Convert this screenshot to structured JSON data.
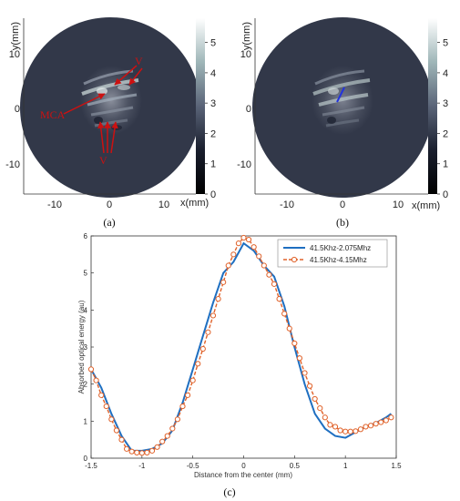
{
  "chart_data": [
    {
      "panel": "(a)",
      "type": "heatmap",
      "xlabel": "x(mm)",
      "ylabel": "y(mm)",
      "xticks": [
        "-10",
        "0",
        "10"
      ],
      "yticks": [
        "10",
        "0",
        "-10"
      ],
      "xlim": [
        -16,
        16
      ],
      "ylim": [
        -15,
        15
      ],
      "colorbar_ticks": [
        "5",
        "4",
        "3",
        "2",
        "1",
        "0"
      ],
      "colorbar_range": [
        0,
        5.8
      ],
      "annotations": [
        {
          "text": "V"
        },
        {
          "text": "MCA"
        },
        {
          "text": "V"
        }
      ]
    },
    {
      "panel": "(b)",
      "type": "heatmap",
      "xlabel": "x(mm)",
      "ylabel": "y(mm)",
      "xticks": [
        "-10",
        "0",
        "10"
      ],
      "yticks": [
        "10",
        "0",
        "-10"
      ],
      "xlim": [
        -16,
        16
      ],
      "ylim": [
        -15,
        15
      ],
      "colorbar_ticks": [
        "5",
        "4",
        "3",
        "2",
        "1",
        "0"
      ],
      "colorbar_range": [
        0,
        5.8
      ]
    },
    {
      "panel": "(c)",
      "type": "line",
      "xlabel": "Distance from the center (mm)",
      "ylabel": "Absorbed optical energy (au)",
      "xlim": [
        -1.5,
        1.5
      ],
      "ylim": [
        0,
        6
      ],
      "xticks": [
        "-1.5",
        "-1",
        "-0.5",
        "0",
        "0.5",
        "1",
        "1.5"
      ],
      "yticks": [
        "0",
        "1",
        "2",
        "3",
        "4",
        "5",
        "6"
      ],
      "legend_position": "top-right",
      "series": [
        {
          "name": "41.5Khz-2.075Mhz",
          "color": "#1f6fc1",
          "style": "solid",
          "x": [
            -1.5,
            -1.4,
            -1.3,
            -1.2,
            -1.1,
            -1.0,
            -0.9,
            -0.8,
            -0.7,
            -0.6,
            -0.5,
            -0.4,
            -0.3,
            -0.2,
            -0.1,
            0.0,
            0.1,
            0.2,
            0.3,
            0.4,
            0.5,
            0.6,
            0.7,
            0.8,
            0.9,
            1.0,
            1.1,
            1.2,
            1.3,
            1.4,
            1.45
          ],
          "y": [
            2.4,
            1.9,
            1.2,
            0.6,
            0.2,
            0.2,
            0.25,
            0.4,
            0.75,
            1.5,
            2.4,
            3.3,
            4.2,
            5.0,
            5.3,
            5.8,
            5.6,
            5.2,
            4.9,
            4.1,
            3.0,
            2.0,
            1.2,
            0.8,
            0.6,
            0.55,
            0.7,
            0.85,
            0.95,
            1.1,
            1.2
          ]
        },
        {
          "name": "41.5Khz-4.15Mhz",
          "color": "#e0622a",
          "style": "dashed-circle",
          "x": [
            -1.5,
            -1.45,
            -1.4,
            -1.35,
            -1.3,
            -1.25,
            -1.2,
            -1.15,
            -1.1,
            -1.05,
            -1.0,
            -0.95,
            -0.9,
            -0.85,
            -0.8,
            -0.75,
            -0.7,
            -0.65,
            -0.6,
            -0.55,
            -0.5,
            -0.45,
            -0.4,
            -0.35,
            -0.3,
            -0.25,
            -0.2,
            -0.15,
            -0.1,
            -0.05,
            0.0,
            0.05,
            0.1,
            0.15,
            0.2,
            0.25,
            0.3,
            0.35,
            0.4,
            0.45,
            0.5,
            0.55,
            0.6,
            0.65,
            0.7,
            0.75,
            0.8,
            0.85,
            0.9,
            0.95,
            1.0,
            1.05,
            1.1,
            1.15,
            1.2,
            1.25,
            1.3,
            1.35,
            1.4,
            1.45
          ],
          "y": [
            2.4,
            2.1,
            1.7,
            1.4,
            1.05,
            0.75,
            0.5,
            0.25,
            0.18,
            0.15,
            0.14,
            0.15,
            0.2,
            0.3,
            0.45,
            0.6,
            0.8,
            1.05,
            1.4,
            1.7,
            2.1,
            2.55,
            2.95,
            3.4,
            3.85,
            4.3,
            4.75,
            5.2,
            5.5,
            5.8,
            5.95,
            5.9,
            5.7,
            5.45,
            5.2,
            4.95,
            4.7,
            4.3,
            3.9,
            3.5,
            3.1,
            2.7,
            2.3,
            1.95,
            1.6,
            1.35,
            1.1,
            0.9,
            0.85,
            0.75,
            0.72,
            0.72,
            0.73,
            0.78,
            0.85,
            0.88,
            0.93,
            0.97,
            1.02,
            1.1
          ]
        }
      ]
    }
  ]
}
